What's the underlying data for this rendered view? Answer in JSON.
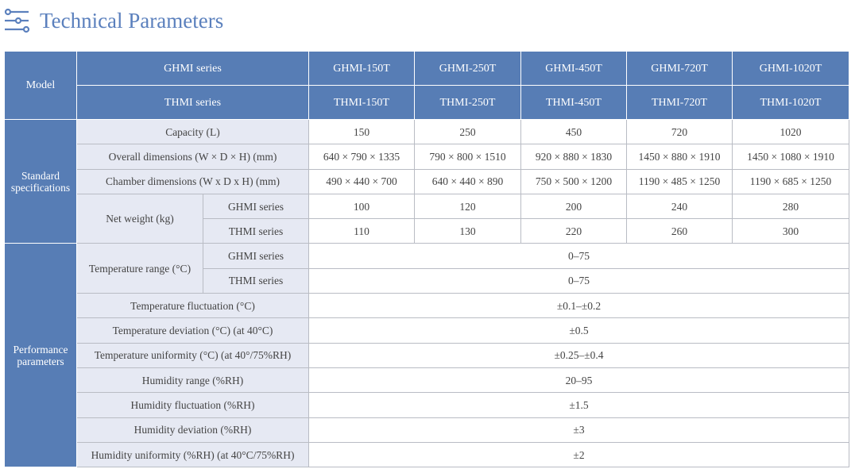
{
  "title": "Technical Parameters",
  "icon": "sliders-icon",
  "colors": {
    "header": "#577db5",
    "label_bg": "#e6e9f3",
    "title": "#5b80bd"
  },
  "header": {
    "model": "Model",
    "ghmi": "GHMI series",
    "thmi": "THMI series",
    "ghmi_models": [
      "GHMI-150T",
      "GHMI-250T",
      "GHMI-450T",
      "GHMI-720T",
      "GHMI-1020T"
    ],
    "thmi_models": [
      "THMI-150T",
      "THMI-250T",
      "THMI-450T",
      "THMI-720T",
      "THMI-1020T"
    ]
  },
  "standard": {
    "label": "Standard specifications",
    "capacity": {
      "label": "Capacity (L)",
      "values": [
        "150",
        "250",
        "450",
        "720",
        "1020"
      ]
    },
    "overall": {
      "label": "Overall dimensions (W × D × H) (mm)",
      "values": [
        "640 × 790 × 1335",
        "790 × 800 × 1510",
        "920 × 880 × 1830",
        "1450 × 880 × 1910",
        "1450 × 1080 × 1910"
      ]
    },
    "chamber": {
      "label": "Chamber dimensions (W x D x H) (mm)",
      "values": [
        "490 × 440 × 700",
        "640 × 440 × 890",
        "750 × 500 × 1200",
        "1190 × 485 × 1250",
        "1190 × 685 × 1250"
      ]
    },
    "weight": {
      "label": "Net weight (kg)",
      "ghmi": "GHMI series",
      "thmi": "THMI series",
      "ghmi_values": [
        "100",
        "120",
        "200",
        "240",
        "280"
      ],
      "thmi_values": [
        "110",
        "130",
        "220",
        "260",
        "300"
      ]
    }
  },
  "performance": {
    "label": "Performance parameters",
    "temp_range": {
      "label": "Temperature range (°C)",
      "ghmi": "GHMI series",
      "thmi": "THMI series",
      "ghmi_value": "0–75",
      "thmi_value": "0–75"
    },
    "rows": [
      {
        "label": "Temperature fluctuation (°C)",
        "value": "±0.1–±0.2"
      },
      {
        "label": "Temperature deviation (°C) (at 40°C)",
        "value": "±0.5"
      },
      {
        "label": "Temperature uniformity (°C) (at 40°/75%RH)",
        "value": "±0.25–±0.4"
      },
      {
        "label": "Humidity range (%RH)",
        "value": "20–95"
      },
      {
        "label": "Humidity fluctuation (%RH)",
        "value": "±1.5"
      },
      {
        "label": "Humidity deviation (%RH)",
        "value": "±3"
      },
      {
        "label": "Humidity uniformity (%RH) (at 40°C/75%RH)",
        "value": "±2"
      }
    ]
  }
}
